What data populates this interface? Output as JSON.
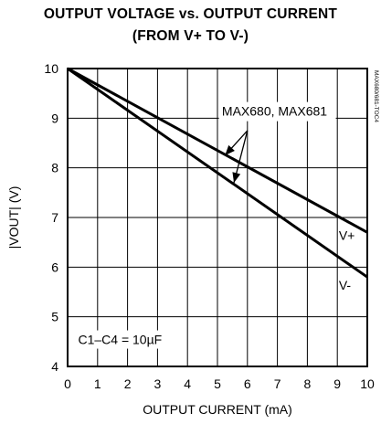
{
  "chart_data": {
    "type": "line",
    "title": "OUTPUT VOLTAGE vs. OUTPUT CURRENT",
    "subtitle": "(FROM V+ TO V-)",
    "xlabel": "OUTPUT CURRENT (mA)",
    "ylabel": "|VOUT| (V)",
    "xlim": [
      0,
      10
    ],
    "ylim": [
      4,
      10
    ],
    "x_ticks": [
      "0",
      "1",
      "2",
      "3",
      "4",
      "5",
      "6",
      "7",
      "8",
      "9",
      "10"
    ],
    "y_ticks": [
      "4",
      "5",
      "6",
      "7",
      "8",
      "9",
      "10"
    ],
    "grid": true,
    "series": [
      {
        "name": "V+",
        "x": [
          0,
          10
        ],
        "y": [
          10,
          6.7
        ]
      },
      {
        "name": "V-",
        "x": [
          0,
          10
        ],
        "y": [
          10,
          5.8
        ]
      }
    ],
    "annotations": {
      "parts_label": "MAX680, MAX681",
      "cap_label": "C1–C4 = 10µF",
      "side_code": "MAX680/681-TOC4"
    }
  }
}
